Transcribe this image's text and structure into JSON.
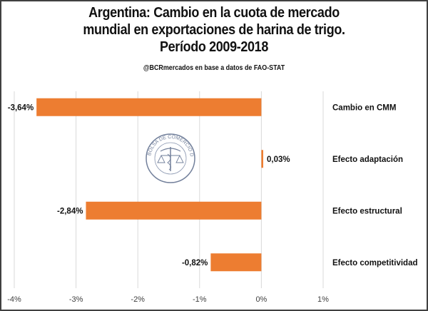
{
  "chart_data": {
    "type": "bar",
    "orientation": "horizontal",
    "title_lines": [
      "Argentina: Cambio en la cuota de mercado",
      "mundial en exportaciones de harina de trigo.",
      "Período 2009-2018"
    ],
    "subtitle": "@BCRmercados en base a datos de FAO-STAT",
    "categories": [
      "Cambio en CMM",
      "Efecto adaptación",
      "Efecto estructural",
      "Efecto competitividad"
    ],
    "values": [
      -3.64,
      0.03,
      -2.84,
      -0.82
    ],
    "data_labels": [
      "-3,64%",
      "0,03%",
      "-2,84%",
      "-0,82%"
    ],
    "xlim": [
      -4,
      1
    ],
    "x_ticks": [
      -4,
      -3,
      -2,
      -1,
      0,
      1
    ],
    "x_tick_labels": [
      "-4%",
      "-3%",
      "-2%",
      "-1%",
      "0%",
      "1%"
    ],
    "xlabel": "",
    "ylabel": "",
    "grid": "vertical",
    "legend": "none",
    "bar_color": "#ED7D31",
    "grid_color": "#D9D9D9",
    "watermark": "Bolsa de Comercio de Rosario seal"
  }
}
